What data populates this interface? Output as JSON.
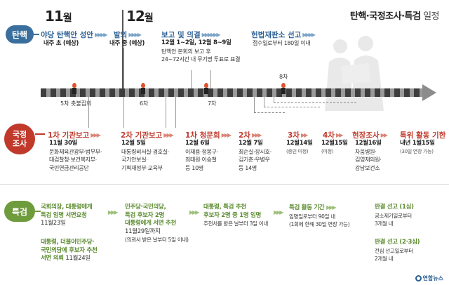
{
  "title": {
    "main": "탄핵·국정조사·특검",
    "sub": " 일정"
  },
  "months": [
    {
      "num": "11",
      "unit": "월"
    },
    {
      "num": "12",
      "unit": "월"
    }
  ],
  "categories": {
    "impeach": "탄핵",
    "probe": "국정\n조사",
    "special": "특검"
  },
  "impeach": {
    "steps": [
      {
        "head": "야당 탄핵안 성안",
        "lines": [
          "내주 초 (예상)"
        ]
      },
      {
        "head": "발의",
        "lines": [
          "내주 중 (예상)"
        ]
      },
      {
        "head": "보고 및 의결",
        "lines": [
          "12월 1~2일, 12월 8~9일",
          "탄핵안 본회의 보고 후",
          "24~72시간 내 무기명 투표로 표결"
        ]
      },
      {
        "head": "헌법재판소 선고",
        "lines": [
          "접수일로부터 180일 이내"
        ]
      }
    ]
  },
  "rallies": [
    {
      "label": "5차 촛불집회"
    },
    {
      "label": "6차"
    },
    {
      "label": "7차"
    },
    {
      "label": "8차"
    }
  ],
  "probe": {
    "steps": [
      {
        "head": "1차 기관보고",
        "lines": [
          "11월 30일",
          "문화체육관광부·법무부·",
          "대검찰청·보건복지부·",
          "국민연금관리공단"
        ]
      },
      {
        "head": "2차 기관보고",
        "lines": [
          "12월 5일",
          "대통령비서실·경호실·",
          "국가안보실·",
          "기획재정부·교육부"
        ]
      },
      {
        "head": "1차 청문회",
        "lines": [
          "12월 6일",
          "이재용·정몽구·",
          "최태원·이승철",
          "등 10명"
        ]
      },
      {
        "head": "2차",
        "lines": [
          "12월 7일",
          "최순실·장시호·",
          "김기춘·우병우",
          "등 14명"
        ]
      },
      {
        "head": "3차",
        "lines": [
          "12월14일",
          "(증인 미정)"
        ]
      },
      {
        "head": "4차",
        "lines": [
          "12월15일",
          "(미정)"
        ]
      },
      {
        "head": "현장조사",
        "lines": [
          "12월16일",
          "차움병원·",
          "김영재의원·",
          "강남보건소"
        ]
      },
      {
        "head": "특위 활동 기한",
        "lines": [
          "내년 1월15일",
          "(30일 연장 가능)"
        ]
      }
    ]
  },
  "special": {
    "steps": [
      {
        "lines": [
          "국회의장, 대통령에게",
          "특검 임명 서면요청"
        ],
        "date": "11월23일",
        "lines2": [
          "대통령, 더불어민주당·",
          "국민의당에 후보자 추천",
          "서면 의뢰"
        ],
        "date2": "11월24일"
      },
      {
        "lines": [
          "민주당·국민의당,",
          "특검 후보자 2명",
          "대통령에게 서면 추천"
        ],
        "date": "11월29일까지",
        "note": "(의뢰서 받은 날부터 5일 이내)"
      },
      {
        "lines": [
          "대통령, 특검 추천",
          "후보자 2명 중 1명 임명"
        ],
        "note": "추천서를 받은 날부터 3일 이내"
      },
      {
        "head": "특검 활동 기간",
        "note": "임명일로부터 90일 내",
        "note2": "(1회에 한해 30일 연장 가능)"
      },
      {
        "head": "판결 선고 (1심)",
        "note": "공소제기일로부터",
        "note2": "3개월 내"
      },
      {
        "head": "판결 선고 (2·3심)",
        "note": "전심 선고일로부터",
        "note2": "2개월 내"
      }
    ]
  },
  "logo": "연합뉴스",
  "colors": {
    "impeach": "#3a6f9d",
    "probe": "#c0392b",
    "special": "#6e9b3c",
    "bar": "#3d3d3d",
    "bar_gap": "#9a9a9a"
  }
}
